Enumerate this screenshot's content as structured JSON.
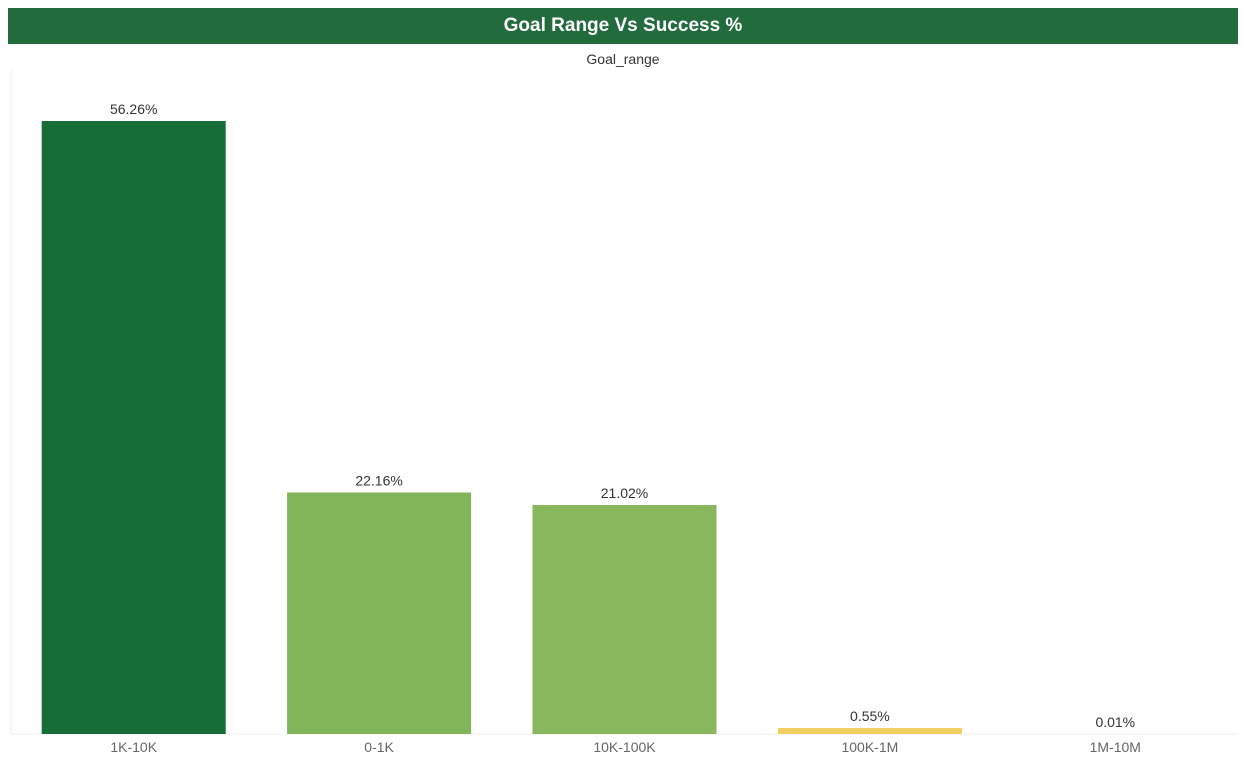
{
  "header": {
    "title": "Goal Range Vs Success %"
  },
  "chart_data": {
    "type": "bar",
    "title": "Goal Range Vs Success %",
    "xlabel": "Goal_range",
    "ylabel": "",
    "ylim": [
      0,
      60
    ],
    "categories": [
      "1K-10K",
      "0-1K",
      "10K-100K",
      "100K-1M",
      "1M-10M"
    ],
    "values": [
      56.26,
      22.16,
      21.02,
      0.55,
      0.01
    ],
    "data_labels": [
      "56.26%",
      "22.16%",
      "21.02%",
      "0.55%",
      "0.01%"
    ],
    "colors": [
      "#176d38",
      "#82b45a",
      "#88b75d",
      "#f2cf60",
      "#f2cf60"
    ],
    "grid": false,
    "legend": "none"
  }
}
